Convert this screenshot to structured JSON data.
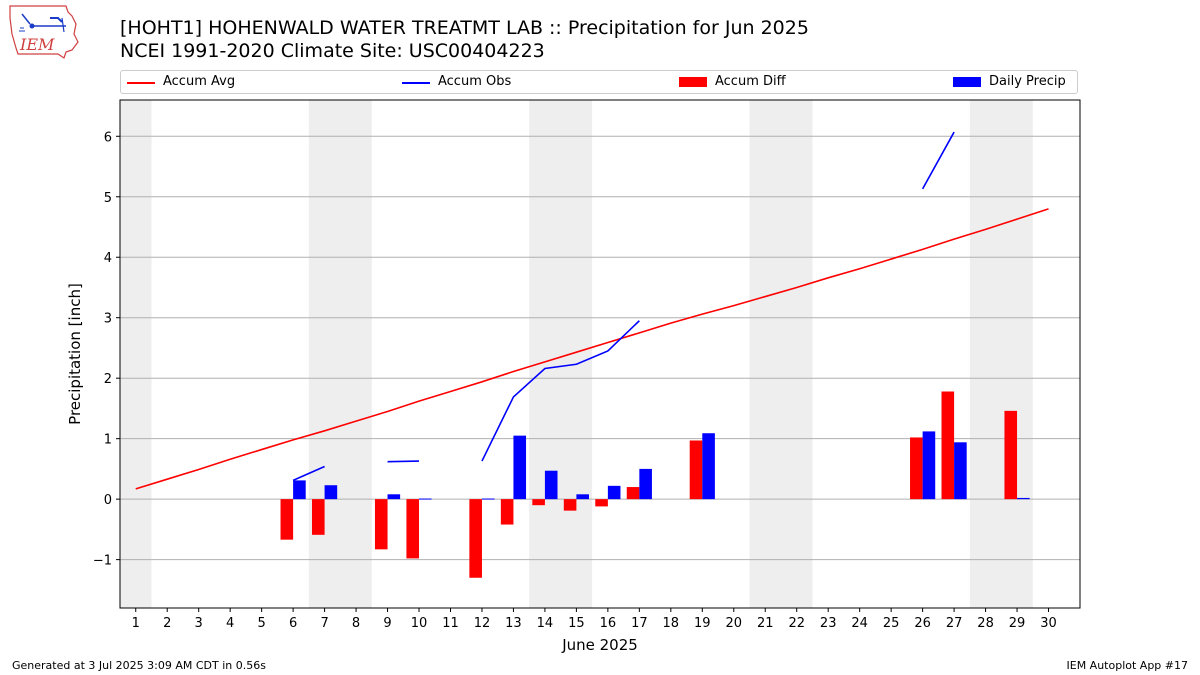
{
  "header": {
    "title_line1": "[HOHT1] HOHENWALD WATER TREATMT LAB :: Precipitation for Jun 2025",
    "title_line2": "NCEI 1991-2020 Climate Site: USC00404223",
    "logo_text": "IEM"
  },
  "footer": {
    "generated": "Generated at 3 Jul 2025 3:09 AM CDT in 0.56s",
    "app": "IEM Autoplot App #17"
  },
  "colors": {
    "avg": "#ff0000",
    "obs": "#0000ff",
    "diff": "#ff0000",
    "daily": "#0000ff",
    "weekend_band": "#eeeeee",
    "grid": "#b0b0b0"
  },
  "chart_data": {
    "type": "bar",
    "title": "[HOHT1] HOHENWALD WATER TREATMT LAB :: Precipitation for Jun 2025",
    "subtitle": "NCEI 1991-2020 Climate Site: USC00404223",
    "xlabel": "June 2025",
    "ylabel": "Precipitation [inch]",
    "xlim": [
      0.5,
      31
    ],
    "ylim": [
      -1.8,
      6.6
    ],
    "x_ticks": [
      1,
      2,
      3,
      4,
      5,
      6,
      7,
      8,
      9,
      10,
      11,
      12,
      13,
      14,
      15,
      16,
      17,
      18,
      19,
      20,
      21,
      22,
      23,
      24,
      25,
      26,
      27,
      28,
      29,
      30
    ],
    "y_ticks": [
      -1,
      0,
      1,
      2,
      3,
      4,
      5,
      6
    ],
    "y_tick_labels": [
      "−1",
      "0",
      "1",
      "2",
      "3",
      "4",
      "5",
      "6"
    ],
    "grid": "horizontal",
    "legend": {
      "position": "top",
      "entries": [
        "Accum Avg",
        "Accum Obs",
        "Accum Diff",
        "Daily Precip"
      ]
    },
    "weekend_bands": [
      [
        0.5,
        1.5
      ],
      [
        6.5,
        8.5
      ],
      [
        13.5,
        15.5
      ],
      [
        20.5,
        22.5
      ],
      [
        27.5,
        29.5
      ]
    ],
    "series": [
      {
        "name": "Accum Avg",
        "kind": "line",
        "x": [
          1,
          2,
          3,
          4,
          5,
          6,
          7,
          8,
          9,
          10,
          11,
          12,
          13,
          14,
          15,
          16,
          17,
          18,
          19,
          20,
          21,
          22,
          23,
          24,
          25,
          26,
          27,
          28,
          29,
          30
        ],
        "values": [
          0.17,
          0.33,
          0.49,
          0.66,
          0.82,
          0.98,
          1.13,
          1.29,
          1.45,
          1.62,
          1.78,
          1.94,
          2.11,
          2.27,
          2.43,
          2.59,
          2.75,
          2.91,
          3.06,
          3.2,
          3.35,
          3.5,
          3.66,
          3.81,
          3.97,
          4.13,
          4.3,
          4.46,
          4.63,
          4.8
        ]
      },
      {
        "name": "Accum Obs",
        "kind": "line_segments",
        "segments": [
          {
            "x": [
              6,
              7
            ],
            "values": [
              0.31,
              0.54
            ]
          },
          {
            "x": [
              9,
              10
            ],
            "values": [
              0.62,
              0.63
            ]
          },
          {
            "x": [
              12,
              13,
              14,
              15,
              16,
              17
            ],
            "values": [
              0.63,
              1.69,
              2.16,
              2.23,
              2.45,
              2.95
            ]
          },
          {
            "x": [
              26,
              27
            ],
            "values": [
              5.13,
              6.07
            ]
          }
        ]
      },
      {
        "name": "Accum Diff",
        "kind": "bar_left",
        "x": [
          6,
          7,
          9,
          10,
          12,
          13,
          14,
          15,
          16,
          17,
          19,
          26,
          27,
          29
        ],
        "values": [
          -0.67,
          -0.59,
          -0.83,
          -0.98,
          -1.3,
          -0.42,
          -0.1,
          -0.19,
          -0.12,
          0.2,
          0.97,
          1.02,
          1.78,
          1.46
        ]
      },
      {
        "name": "Daily Precip",
        "kind": "bar_right",
        "x": [
          6,
          7,
          9,
          10,
          12,
          13,
          14,
          15,
          16,
          17,
          19,
          26,
          27,
          29
        ],
        "values": [
          0.31,
          0.23,
          0.08,
          0.01,
          0.01,
          1.05,
          0.47,
          0.08,
          0.22,
          0.5,
          1.09,
          1.12,
          0.94,
          0.02
        ]
      }
    ]
  }
}
